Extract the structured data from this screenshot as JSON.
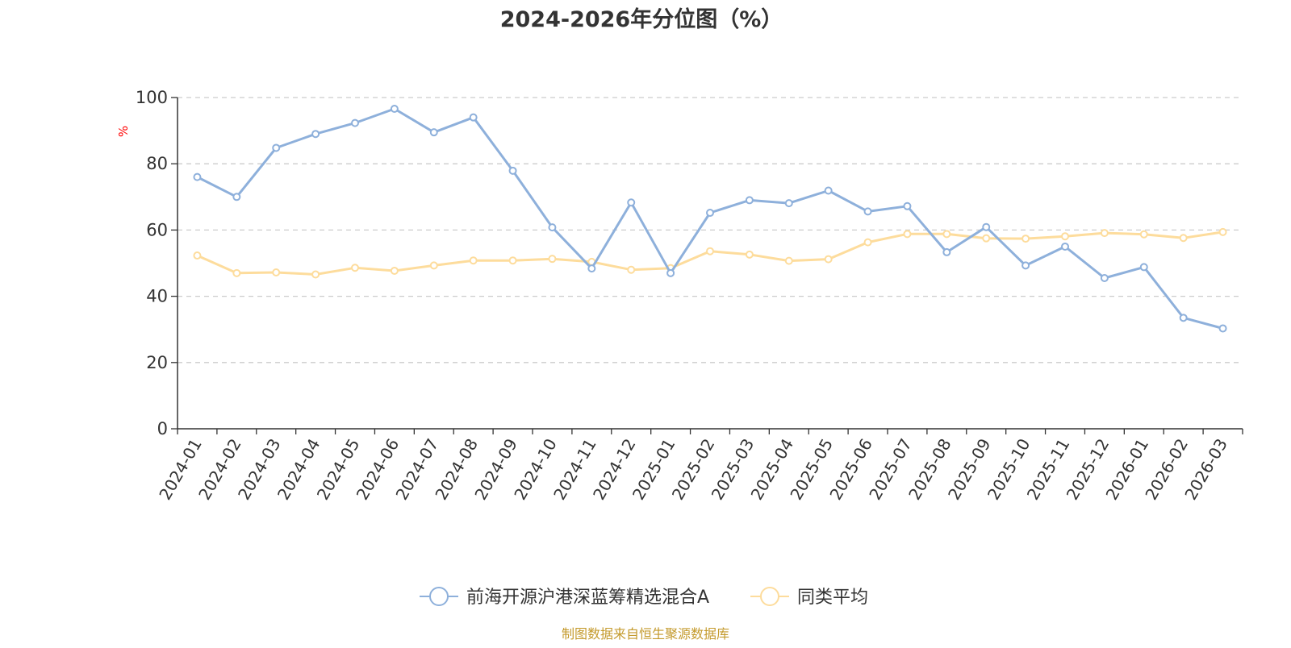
{
  "chart_data": {
    "type": "line",
    "title": "2024-2026年分位图（%）",
    "ylabel": "%",
    "xlabel": "",
    "ylim": [
      0,
      100
    ],
    "yticks": [
      0,
      20,
      40,
      60,
      80,
      100
    ],
    "grid": true,
    "legend_position": "bottom-center",
    "categories": [
      "2024-01",
      "2024-02",
      "2024-03",
      "2024-04",
      "2024-05",
      "2024-06",
      "2024-07",
      "2024-08",
      "2024-09",
      "2024-10",
      "2024-11",
      "2024-12",
      "2025-01",
      "2025-02",
      "2025-03",
      "2025-04",
      "2025-05",
      "2025-06",
      "2025-07",
      "2025-08",
      "2025-09",
      "2025-10",
      "2025-11",
      "2025-12",
      "2026-01",
      "2026-02",
      "2026-03"
    ],
    "series": [
      {
        "name": "前海开源沪港深蓝筹精选混合A",
        "color": "#8eb0db",
        "values": [
          76.0,
          70.0,
          84.8,
          89.0,
          92.3,
          96.6,
          89.5,
          94.0,
          77.9,
          60.8,
          48.4,
          68.3,
          47.0,
          65.2,
          69.0,
          68.1,
          71.9,
          65.6,
          67.2,
          53.3,
          60.9,
          49.3,
          55.0,
          45.5,
          48.8,
          33.5,
          30.3
        ]
      },
      {
        "name": "同类平均",
        "color": "#fddc9c",
        "values": [
          52.3,
          47.0,
          47.2,
          46.6,
          48.6,
          47.7,
          49.3,
          50.8,
          50.8,
          51.3,
          50.4,
          48.0,
          48.5,
          53.6,
          52.6,
          50.7,
          51.2,
          56.3,
          58.8,
          58.8,
          57.5,
          57.4,
          58.1,
          59.1,
          58.7,
          57.6,
          59.4
        ]
      }
    ]
  },
  "footer": {
    "source": "制图数据来自恒生聚源数据库",
    "source_color": "#c49a2c"
  }
}
